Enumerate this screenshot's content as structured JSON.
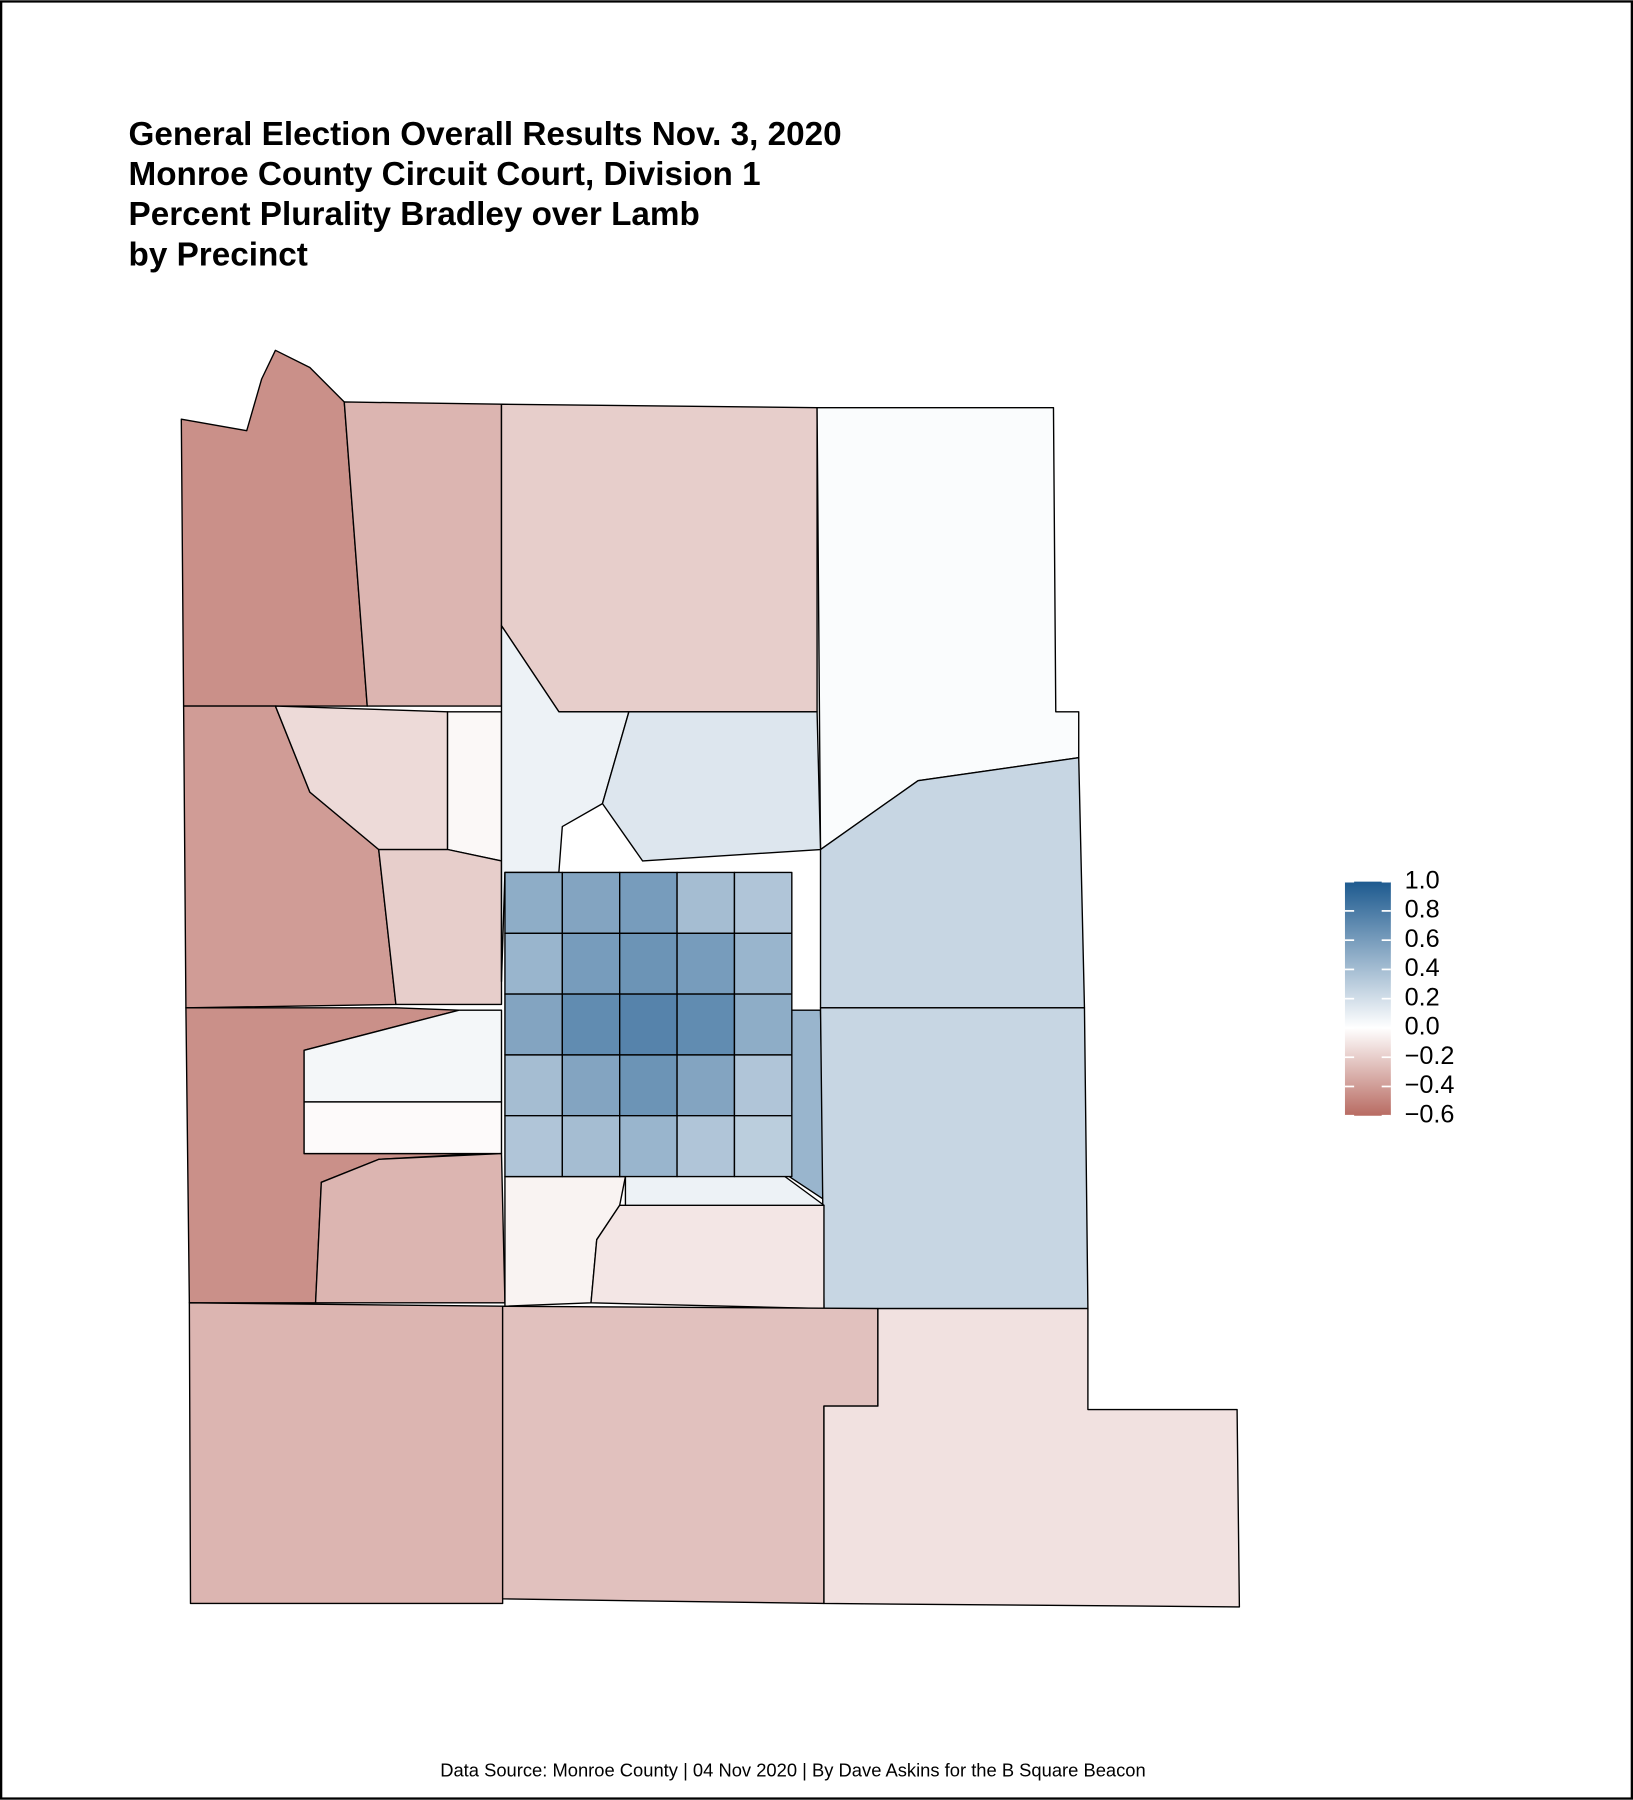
{
  "chart_data": {
    "type": "choropleth",
    "title": [
      "General Election Overall Results Nov. 3, 2020",
      "Monroe County Circuit Court, Division 1",
      "Percent Plurality Bradley over Lamb",
      "by Precinct"
    ],
    "caption": "Data Source: Monroe County | 04 Nov 2020 | By Dave Askins for the B Square Beacon",
    "values": [
      -0.45,
      -0.3,
      -0.2,
      0.02,
      -0.4,
      -0.15,
      -0.03,
      -0.2,
      0.08,
      0.15,
      0.25,
      0.45,
      0.25,
      -0.45,
      0.05,
      -0.02,
      -0.3,
      -0.05,
      -0.1,
      0.08,
      -0.3,
      -0.25,
      -0.12,
      0.5,
      0.55,
      0.6,
      0.4,
      0.35,
      0.45,
      0.6,
      0.65,
      0.6,
      0.45,
      0.55,
      0.7,
      0.75,
      0.7,
      0.5,
      0.4,
      0.55,
      0.65,
      0.55,
      0.35,
      0.35,
      0.4,
      0.45,
      0.35,
      0.3
    ],
    "clim": [
      -0.6,
      1.0
    ],
    "colors": {
      "low": "#b86b62",
      "mid": "#ffffff",
      "high": "#1d5a8f"
    },
    "ticks": [
      {
        "value": 1.0,
        "label": "1.0"
      },
      0.8,
      0.6,
      0.4,
      0.2,
      {
        "value": 0,
        "label": "0.0"
      },
      {
        "value": -0.2,
        "label": "−0.2"
      },
      {
        "value": -0.4,
        "label": "−0.4"
      },
      {
        "value": -0.6,
        "label": "−0.6"
      }
    ]
  }
}
